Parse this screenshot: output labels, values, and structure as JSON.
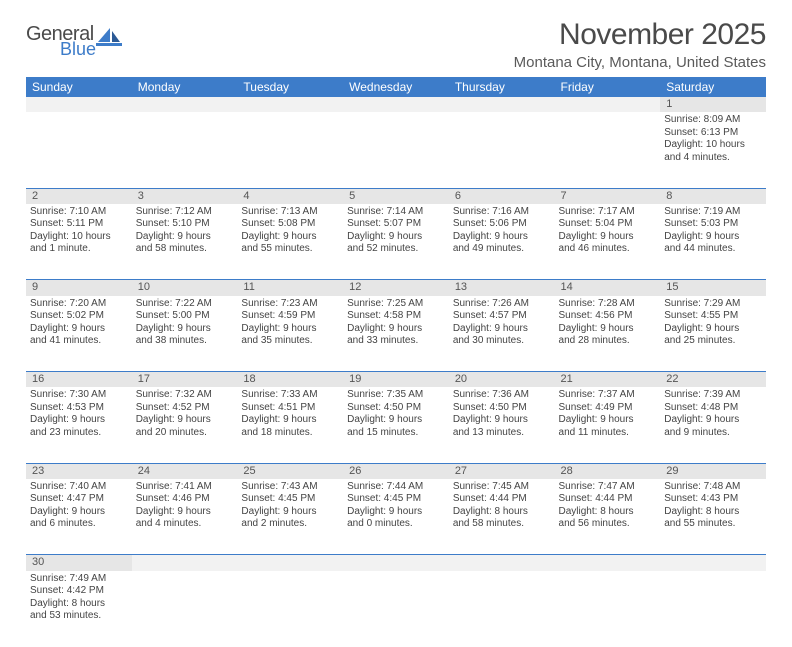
{
  "logo": {
    "general": "General",
    "blue": "Blue"
  },
  "title": "November 2025",
  "location": "Montana City, Montana, United States",
  "colors": {
    "header_bg": "#3d7cc9",
    "daynum_bg": "#e6e6e6",
    "text": "#444444"
  },
  "day_names": [
    "Sunday",
    "Monday",
    "Tuesday",
    "Wednesday",
    "Thursday",
    "Friday",
    "Saturday"
  ],
  "weeks": [
    {
      "nums": [
        "",
        "",
        "",
        "",
        "",
        "",
        "1"
      ],
      "cells": [
        null,
        null,
        null,
        null,
        null,
        null,
        {
          "sunrise": "Sunrise: 8:09 AM",
          "sunset": "Sunset: 6:13 PM",
          "day1": "Daylight: 10 hours",
          "day2": "and 4 minutes."
        }
      ]
    },
    {
      "nums": [
        "2",
        "3",
        "4",
        "5",
        "6",
        "7",
        "8"
      ],
      "cells": [
        {
          "sunrise": "Sunrise: 7:10 AM",
          "sunset": "Sunset: 5:11 PM",
          "day1": "Daylight: 10 hours",
          "day2": "and 1 minute."
        },
        {
          "sunrise": "Sunrise: 7:12 AM",
          "sunset": "Sunset: 5:10 PM",
          "day1": "Daylight: 9 hours",
          "day2": "and 58 minutes."
        },
        {
          "sunrise": "Sunrise: 7:13 AM",
          "sunset": "Sunset: 5:08 PM",
          "day1": "Daylight: 9 hours",
          "day2": "and 55 minutes."
        },
        {
          "sunrise": "Sunrise: 7:14 AM",
          "sunset": "Sunset: 5:07 PM",
          "day1": "Daylight: 9 hours",
          "day2": "and 52 minutes."
        },
        {
          "sunrise": "Sunrise: 7:16 AM",
          "sunset": "Sunset: 5:06 PM",
          "day1": "Daylight: 9 hours",
          "day2": "and 49 minutes."
        },
        {
          "sunrise": "Sunrise: 7:17 AM",
          "sunset": "Sunset: 5:04 PM",
          "day1": "Daylight: 9 hours",
          "day2": "and 46 minutes."
        },
        {
          "sunrise": "Sunrise: 7:19 AM",
          "sunset": "Sunset: 5:03 PM",
          "day1": "Daylight: 9 hours",
          "day2": "and 44 minutes."
        }
      ]
    },
    {
      "nums": [
        "9",
        "10",
        "11",
        "12",
        "13",
        "14",
        "15"
      ],
      "cells": [
        {
          "sunrise": "Sunrise: 7:20 AM",
          "sunset": "Sunset: 5:02 PM",
          "day1": "Daylight: 9 hours",
          "day2": "and 41 minutes."
        },
        {
          "sunrise": "Sunrise: 7:22 AM",
          "sunset": "Sunset: 5:00 PM",
          "day1": "Daylight: 9 hours",
          "day2": "and 38 minutes."
        },
        {
          "sunrise": "Sunrise: 7:23 AM",
          "sunset": "Sunset: 4:59 PM",
          "day1": "Daylight: 9 hours",
          "day2": "and 35 minutes."
        },
        {
          "sunrise": "Sunrise: 7:25 AM",
          "sunset": "Sunset: 4:58 PM",
          "day1": "Daylight: 9 hours",
          "day2": "and 33 minutes."
        },
        {
          "sunrise": "Sunrise: 7:26 AM",
          "sunset": "Sunset: 4:57 PM",
          "day1": "Daylight: 9 hours",
          "day2": "and 30 minutes."
        },
        {
          "sunrise": "Sunrise: 7:28 AM",
          "sunset": "Sunset: 4:56 PM",
          "day1": "Daylight: 9 hours",
          "day2": "and 28 minutes."
        },
        {
          "sunrise": "Sunrise: 7:29 AM",
          "sunset": "Sunset: 4:55 PM",
          "day1": "Daylight: 9 hours",
          "day2": "and 25 minutes."
        }
      ]
    },
    {
      "nums": [
        "16",
        "17",
        "18",
        "19",
        "20",
        "21",
        "22"
      ],
      "cells": [
        {
          "sunrise": "Sunrise: 7:30 AM",
          "sunset": "Sunset: 4:53 PM",
          "day1": "Daylight: 9 hours",
          "day2": "and 23 minutes."
        },
        {
          "sunrise": "Sunrise: 7:32 AM",
          "sunset": "Sunset: 4:52 PM",
          "day1": "Daylight: 9 hours",
          "day2": "and 20 minutes."
        },
        {
          "sunrise": "Sunrise: 7:33 AM",
          "sunset": "Sunset: 4:51 PM",
          "day1": "Daylight: 9 hours",
          "day2": "and 18 minutes."
        },
        {
          "sunrise": "Sunrise: 7:35 AM",
          "sunset": "Sunset: 4:50 PM",
          "day1": "Daylight: 9 hours",
          "day2": "and 15 minutes."
        },
        {
          "sunrise": "Sunrise: 7:36 AM",
          "sunset": "Sunset: 4:50 PM",
          "day1": "Daylight: 9 hours",
          "day2": "and 13 minutes."
        },
        {
          "sunrise": "Sunrise: 7:37 AM",
          "sunset": "Sunset: 4:49 PM",
          "day1": "Daylight: 9 hours",
          "day2": "and 11 minutes."
        },
        {
          "sunrise": "Sunrise: 7:39 AM",
          "sunset": "Sunset: 4:48 PM",
          "day1": "Daylight: 9 hours",
          "day2": "and 9 minutes."
        }
      ]
    },
    {
      "nums": [
        "23",
        "24",
        "25",
        "26",
        "27",
        "28",
        "29"
      ],
      "cells": [
        {
          "sunrise": "Sunrise: 7:40 AM",
          "sunset": "Sunset: 4:47 PM",
          "day1": "Daylight: 9 hours",
          "day2": "and 6 minutes."
        },
        {
          "sunrise": "Sunrise: 7:41 AM",
          "sunset": "Sunset: 4:46 PM",
          "day1": "Daylight: 9 hours",
          "day2": "and 4 minutes."
        },
        {
          "sunrise": "Sunrise: 7:43 AM",
          "sunset": "Sunset: 4:45 PM",
          "day1": "Daylight: 9 hours",
          "day2": "and 2 minutes."
        },
        {
          "sunrise": "Sunrise: 7:44 AM",
          "sunset": "Sunset: 4:45 PM",
          "day1": "Daylight: 9 hours",
          "day2": "and 0 minutes."
        },
        {
          "sunrise": "Sunrise: 7:45 AM",
          "sunset": "Sunset: 4:44 PM",
          "day1": "Daylight: 8 hours",
          "day2": "and 58 minutes."
        },
        {
          "sunrise": "Sunrise: 7:47 AM",
          "sunset": "Sunset: 4:44 PM",
          "day1": "Daylight: 8 hours",
          "day2": "and 56 minutes."
        },
        {
          "sunrise": "Sunrise: 7:48 AM",
          "sunset": "Sunset: 4:43 PM",
          "day1": "Daylight: 8 hours",
          "day2": "and 55 minutes."
        }
      ]
    },
    {
      "nums": [
        "30",
        "",
        "",
        "",
        "",
        "",
        ""
      ],
      "cells": [
        {
          "sunrise": "Sunrise: 7:49 AM",
          "sunset": "Sunset: 4:42 PM",
          "day1": "Daylight: 8 hours",
          "day2": "and 53 minutes."
        },
        null,
        null,
        null,
        null,
        null,
        null
      ]
    }
  ]
}
